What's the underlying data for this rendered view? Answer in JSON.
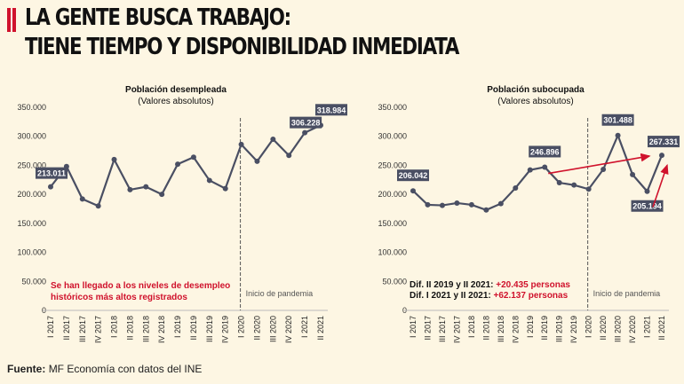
{
  "header": {
    "title_line1": "LA GENTE BUSCA TRABAJO:",
    "title_line2": "TIENE TIEMPO Y DISPONIBILIDAD INMEDIATA"
  },
  "footer": {
    "label": "Fuente:",
    "text": "MF Economía con datos del INE"
  },
  "colors": {
    "line": "#4a4f63",
    "accent": "#d0122c",
    "background": "#fdf6e3",
    "label_box": "#4a4f63"
  },
  "chart_data": [
    {
      "type": "line",
      "title": "Población desempleada",
      "subtitle": "(Valores absolutos)",
      "categories": [
        "I 2017",
        "II 2017",
        "III 2017",
        "IV 2017",
        "I 2018",
        "II 2018",
        "III 2018",
        "IV 2018",
        "I 2019",
        "II 2019",
        "III 2019",
        "IV 2019",
        "I 2020",
        "II 2020",
        "III 2020",
        "IV 2020",
        "I 2021",
        "II 2021"
      ],
      "values": [
        213011,
        248000,
        192000,
        180000,
        260000,
        208000,
        213000,
        200000,
        252000,
        264000,
        224000,
        210000,
        286000,
        257000,
        295000,
        267000,
        306228,
        318984
      ],
      "ylim": [
        0,
        350000
      ],
      "yticks": [
        "0",
        "50.000",
        "100.000",
        "150.000",
        "200.000",
        "250.000",
        "300.000",
        "350.000"
      ],
      "data_labels": [
        {
          "index": 0,
          "text": "213.011"
        },
        {
          "index": 16,
          "text": "306.228"
        },
        {
          "index": 17,
          "text": "318.984"
        }
      ],
      "marker": {
        "index": 12,
        "text": "Inicio de pandemia"
      },
      "annotation": [
        "Se han llegado a los niveles de desempleo",
        "históricos más altos registrados"
      ]
    },
    {
      "type": "line",
      "title": "Población subocupada",
      "subtitle": "(Valores absolutos)",
      "categories": [
        "I 2017",
        "II 2017",
        "III 2017",
        "IV 2017",
        "I 2018",
        "II 2018",
        "III 2018",
        "IV 2018",
        "I 2019",
        "II 2019",
        "III 2019",
        "IV 2019",
        "I 2020",
        "II 2020",
        "III 2020",
        "IV 2020",
        "I 2021",
        "II 2021"
      ],
      "values": [
        206042,
        182000,
        181000,
        185000,
        182000,
        173000,
        184000,
        211000,
        242000,
        246896,
        220000,
        216000,
        209000,
        243000,
        301488,
        234000,
        205194,
        267331
      ],
      "ylim": [
        0,
        350000
      ],
      "yticks": [
        "0",
        "50.000",
        "100.000",
        "150.000",
        "200.000",
        "250.000",
        "300.000",
        "350.000"
      ],
      "data_labels": [
        {
          "index": 0,
          "text": "206.042"
        },
        {
          "index": 9,
          "text": "246.896"
        },
        {
          "index": 14,
          "text": "301.488"
        },
        {
          "index": 16,
          "text": "205.194"
        },
        {
          "index": 17,
          "text": "267.331"
        }
      ],
      "marker": {
        "index": 12,
        "text": "Inicio de pandemia"
      },
      "annotation_lines": [
        {
          "label": "Dif. II 2019 y II 2021:",
          "value": "+20.435 personas"
        },
        {
          "label": "Dif. I 2021 y II 2021:",
          "value": "+62.137 personas"
        }
      ]
    }
  ]
}
